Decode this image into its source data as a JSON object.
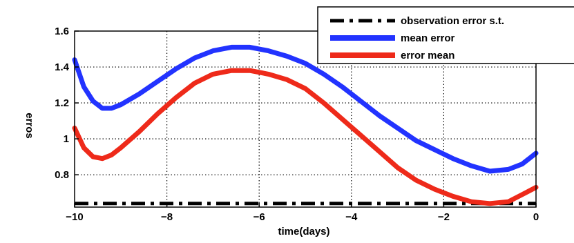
{
  "chart_data": {
    "type": "line",
    "title": "",
    "xlabel": "time(days)",
    "ylabel": "erros",
    "xlim": [
      -10,
      0
    ],
    "ylim": [
      0.62,
      1.6
    ],
    "xticks": [
      -10,
      -8,
      -6,
      -4,
      -2,
      0
    ],
    "xtick_labels": [
      "−10",
      "−8",
      "−6",
      "−4",
      "−2",
      "0"
    ],
    "yticks": [
      0.8,
      1,
      1.2,
      1.4,
      1.6
    ],
    "ytick_labels": [
      "0.8",
      "1",
      "1.2",
      "1.4",
      "1.6"
    ],
    "grid": true,
    "grid_style": "dotted",
    "legend_position": "top-right",
    "series": [
      {
        "name": "observation error s.t.",
        "color": "#000000",
        "style": "dash-dot",
        "x": [
          -10,
          0
        ],
        "y": [
          0.64,
          0.64
        ]
      },
      {
        "name": "mean error",
        "color": "#2233ff",
        "style": "solid",
        "x": [
          -10,
          -9.8,
          -9.6,
          -9.4,
          -9.2,
          -9.0,
          -8.6,
          -8.2,
          -7.8,
          -7.4,
          -7.0,
          -6.6,
          -6.2,
          -5.8,
          -5.4,
          -5.0,
          -4.6,
          -4.2,
          -3.8,
          -3.4,
          -3.0,
          -2.6,
          -2.2,
          -1.8,
          -1.4,
          -1.0,
          -0.6,
          -0.3,
          0
        ],
        "y": [
          1.44,
          1.29,
          1.21,
          1.17,
          1.17,
          1.19,
          1.25,
          1.32,
          1.39,
          1.45,
          1.49,
          1.51,
          1.51,
          1.49,
          1.46,
          1.42,
          1.36,
          1.29,
          1.21,
          1.13,
          1.06,
          0.99,
          0.94,
          0.89,
          0.85,
          0.82,
          0.83,
          0.86,
          0.92
        ]
      },
      {
        "name": "error mean",
        "color": "#ee2a1a",
        "style": "solid",
        "x": [
          -10,
          -9.8,
          -9.6,
          -9.4,
          -9.2,
          -9.0,
          -8.6,
          -8.2,
          -7.8,
          -7.4,
          -7.0,
          -6.6,
          -6.2,
          -5.8,
          -5.4,
          -5.0,
          -4.6,
          -4.2,
          -3.8,
          -3.4,
          -3.0,
          -2.6,
          -2.2,
          -1.8,
          -1.4,
          -1.0,
          -0.6,
          -0.3,
          0
        ],
        "y": [
          1.06,
          0.95,
          0.9,
          0.89,
          0.91,
          0.95,
          1.04,
          1.14,
          1.23,
          1.31,
          1.36,
          1.38,
          1.38,
          1.36,
          1.33,
          1.28,
          1.2,
          1.11,
          1.02,
          0.93,
          0.84,
          0.77,
          0.72,
          0.68,
          0.65,
          0.64,
          0.65,
          0.69,
          0.73
        ]
      }
    ]
  }
}
